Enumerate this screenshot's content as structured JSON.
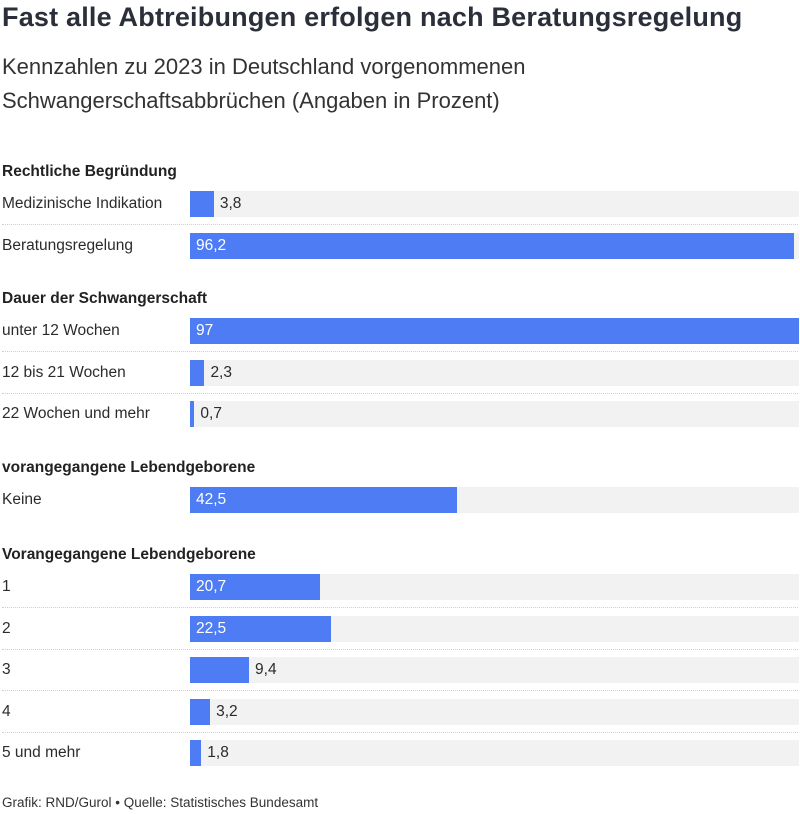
{
  "title": "Fast alle Abtreibungen erfolgen nach Beratungsregelung",
  "subtitle": "Kennzahlen zu 2023 in Deutschland vorgenommenen Schwangerschaftsabbrüchen (Angaben in Prozent)",
  "footer": "Grafik: RND/Gurol • Quelle: Statistisches Bundesamt",
  "colors": {
    "bar": "#4d7cf5",
    "track": "#f2f2f2"
  },
  "chart_data": {
    "type": "bar",
    "orientation": "horizontal",
    "xlim": [
      0,
      97
    ],
    "groups": [
      {
        "name": "Rechtliche Begründung",
        "categories": [
          "Medizinische Indikation",
          "Beratungsregelung"
        ],
        "values": [
          3.8,
          96.2
        ],
        "value_labels": [
          "3,8",
          "96,2"
        ]
      },
      {
        "name": "Dauer der Schwangerschaft",
        "categories": [
          "unter 12 Wochen",
          "12 bis 21 Wochen",
          "22 Wochen und mehr"
        ],
        "values": [
          97,
          2.3,
          0.7
        ],
        "value_labels": [
          "97",
          "2,3",
          "0,7"
        ]
      },
      {
        "name": "vorangegangene Lebendgeborene",
        "categories": [
          "Keine"
        ],
        "values": [
          42.5
        ],
        "value_labels": [
          "42,5"
        ]
      },
      {
        "name": "Vorangegangene Lebendgeborene",
        "categories": [
          "1",
          "2",
          "3",
          "4",
          "5 und mehr"
        ],
        "values": [
          20.7,
          22.5,
          9.4,
          3.2,
          1.8
        ],
        "value_labels": [
          "20,7",
          "22,5",
          "9,4",
          "3,2",
          "1,8"
        ]
      }
    ]
  }
}
